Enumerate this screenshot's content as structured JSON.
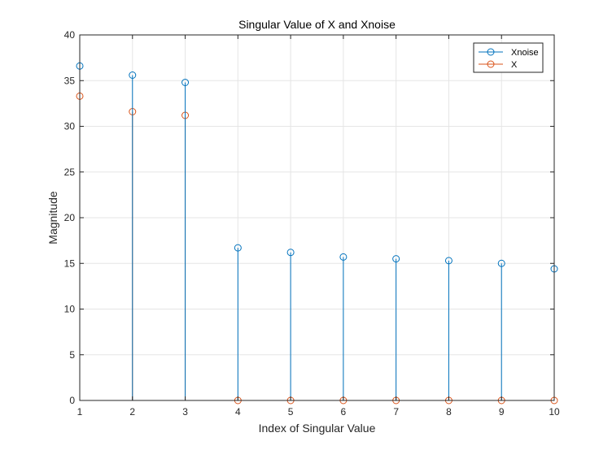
{
  "chart_data": {
    "type": "stem",
    "title": "Singular Value of X and Xnoise",
    "xlabel": "Index of Singular Value",
    "ylabel": "Magnitude",
    "xlim": [
      1,
      10
    ],
    "ylim": [
      0,
      40
    ],
    "xticks": [
      1,
      2,
      3,
      4,
      5,
      6,
      7,
      8,
      9,
      10
    ],
    "yticks": [
      0,
      5,
      10,
      15,
      20,
      25,
      30,
      35,
      40
    ],
    "grid": true,
    "legend_position": "top-right",
    "x": [
      1,
      2,
      3,
      4,
      5,
      6,
      7,
      8,
      9,
      10
    ],
    "series": [
      {
        "name": "Xnoise",
        "color": "#0072bd",
        "values": [
          36.6,
          35.6,
          34.8,
          16.7,
          16.2,
          15.7,
          15.5,
          15.3,
          15.0,
          14.4
        ]
      },
      {
        "name": "X",
        "color": "#d95319",
        "values": [
          33.3,
          31.6,
          31.2,
          0,
          0,
          0,
          0,
          0,
          0,
          0
        ]
      }
    ]
  }
}
